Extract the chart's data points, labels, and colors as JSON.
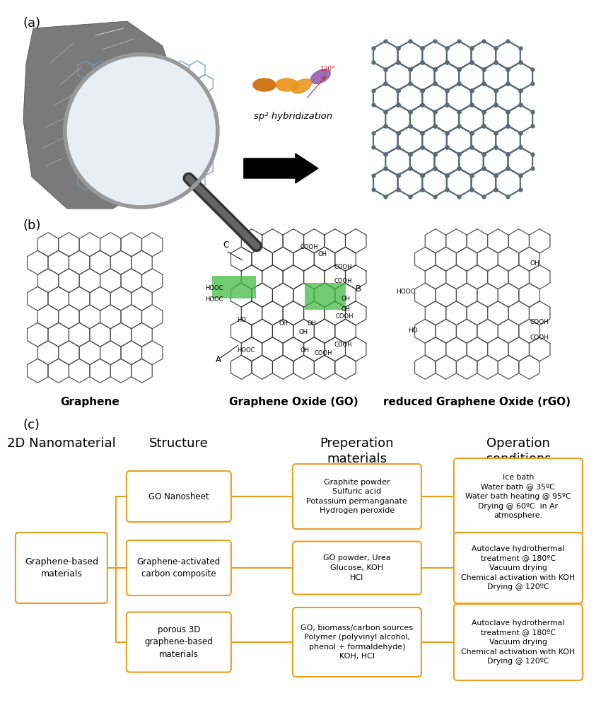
{
  "panel_a_label": "(a)",
  "panel_b_label": "(b)",
  "panel_c_label": "(c)",
  "panel_b_captions": [
    "Graphene",
    "Graphene Oxide (GO)",
    "reduced Graphene Oxide (rGO)"
  ],
  "panel_c_header_col1": "2D Nanomaterial",
  "panel_c_header_col2": "Structure",
  "panel_c_header_col3": "Preperation\nmaterials",
  "panel_c_header_col4": "Operation\nconditions",
  "root_box_text": "Graphene-based\nmaterials",
  "structure_boxes": [
    "GO Nanosheet",
    "Graphene-activated\ncarbon composite",
    "porous 3D\ngraphene-based\nmaterials"
  ],
  "prep_boxes": [
    "Graphite powder\nSulfuric acid\nPotassium permanganate\nHydrogen peroxide",
    "GO powder, Urea\nGlucose, KOH\nHCl",
    "GO, biomass/carbon sources\nPolymer (polyvinyl alcohol,\nphenol + formaldehyde)\nKOH, HCl"
  ],
  "op_boxes": [
    "Ice bath\nWater bath @ 35ºC\nWater bath heating @ 95ºC\nDrying @ 60ºC  in Ar\natmosphere.",
    "Autoclave hydrothermal\ntreatment @ 180ºC\nVacuum drying\nChemical activation with KOH\nDrying @ 120ºC",
    "Autoclave hydrothermal\ntreatment @ 180ºC\nVacuum drying\nChemical activation with KOH\nDrying @ 120ºC"
  ],
  "box_color": "#E8A020",
  "box_fill": "#FFFFFF",
  "line_color": "#E8A020",
  "bg_color": "#FFFFFF",
  "font_size_header": 13,
  "font_size_box": 8.5,
  "font_size_label": 13,
  "font_size_caption": 11,
  "sp2_text": "sp² hybridization",
  "graphene_color": "#5a6a7a",
  "graphene_atom_color": "#5a6a7a"
}
